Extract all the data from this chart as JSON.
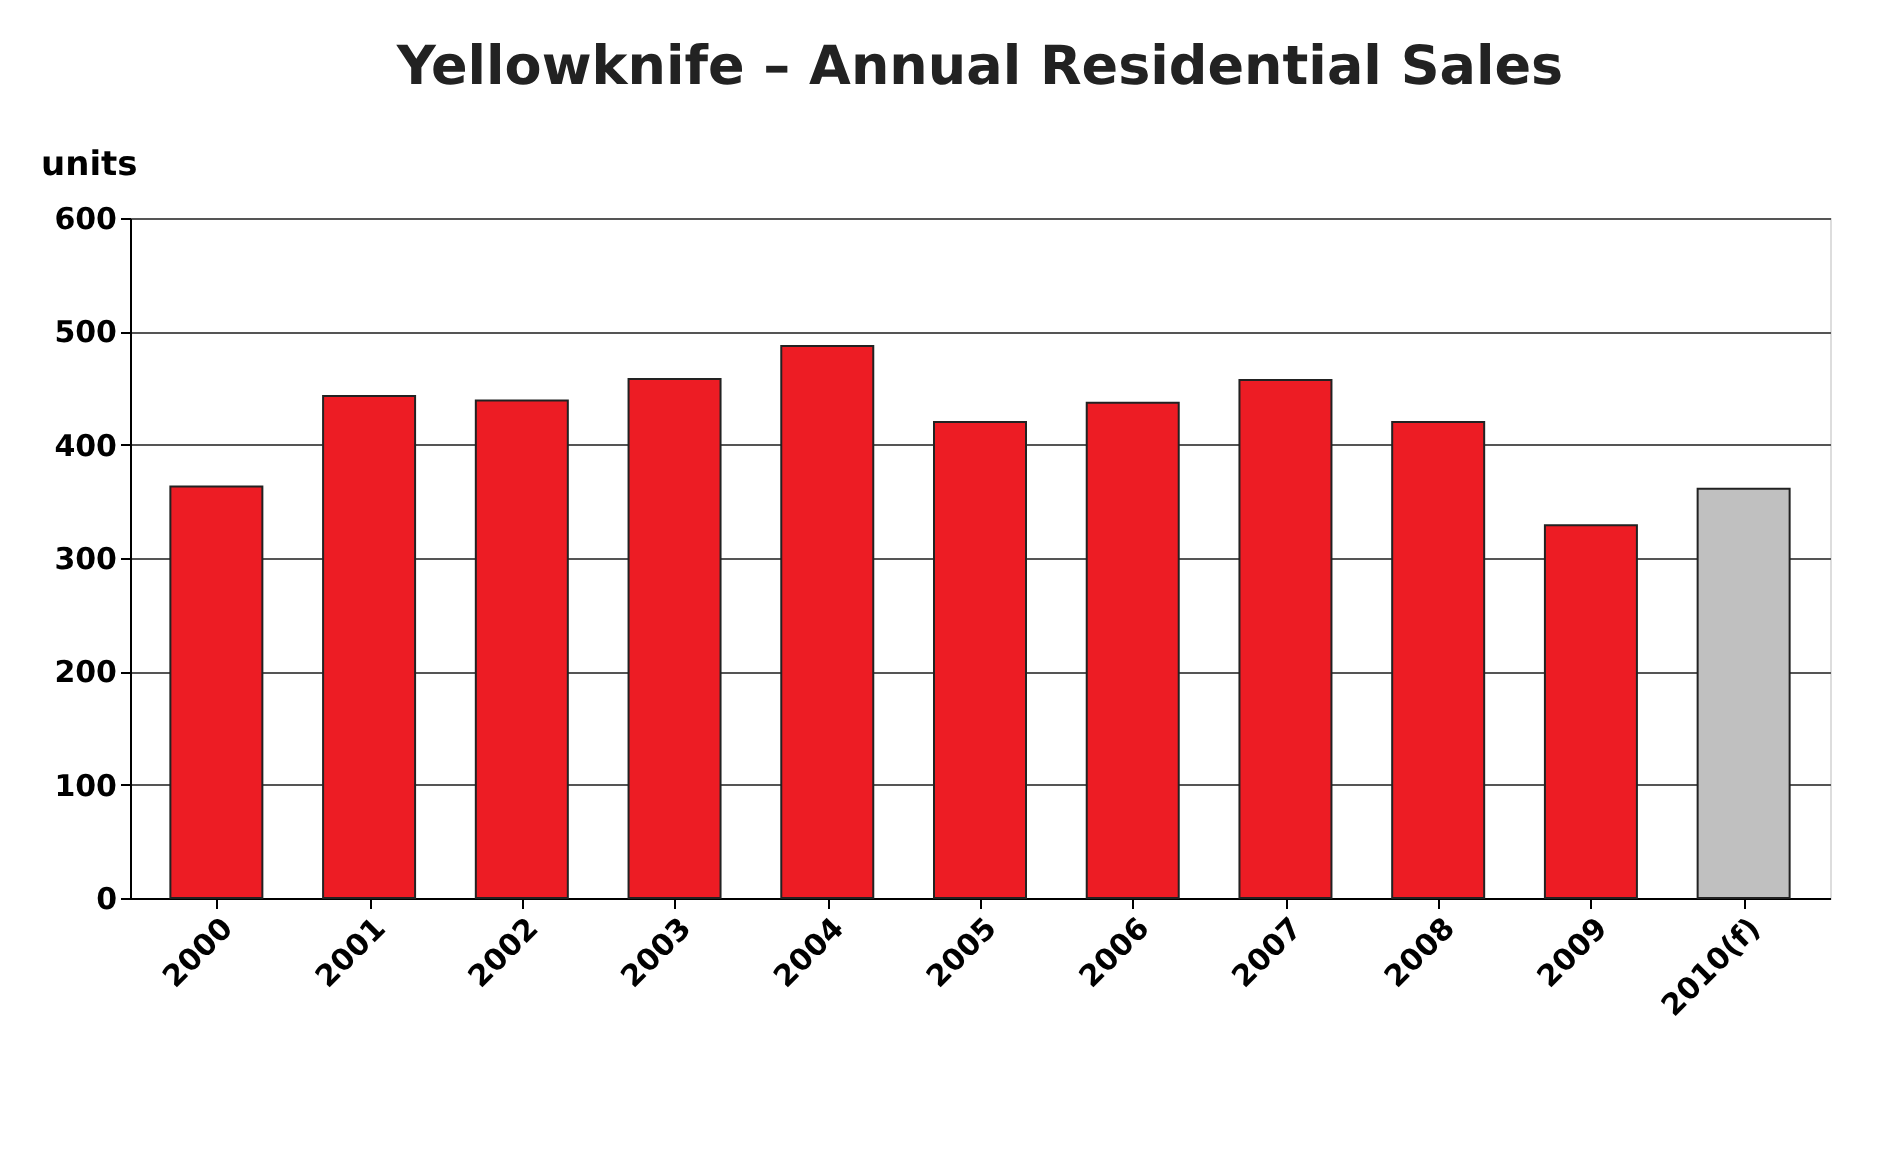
{
  "chart_data": {
    "type": "bar",
    "title": "Yellowknife – Annual Residential Sales",
    "ylabel": "units",
    "categories": [
      "2000",
      "2001",
      "2002",
      "2003",
      "2004",
      "2005",
      "2006",
      "2007",
      "2008",
      "2009",
      "2010(f)"
    ],
    "values": [
      363,
      443,
      439,
      458,
      487,
      420,
      437,
      457,
      420,
      329,
      361
    ],
    "colors": [
      "#ed1c24",
      "#ed1c24",
      "#ed1c24",
      "#ed1c24",
      "#ed1c24",
      "#ed1c24",
      "#ed1c24",
      "#ed1c24",
      "#ed1c24",
      "#ed1c24",
      "#c0c0c0"
    ],
    "ylim": [
      0,
      600
    ],
    "yticks": [
      0,
      100,
      200,
      300,
      400,
      500,
      600
    ],
    "grid": "y"
  }
}
